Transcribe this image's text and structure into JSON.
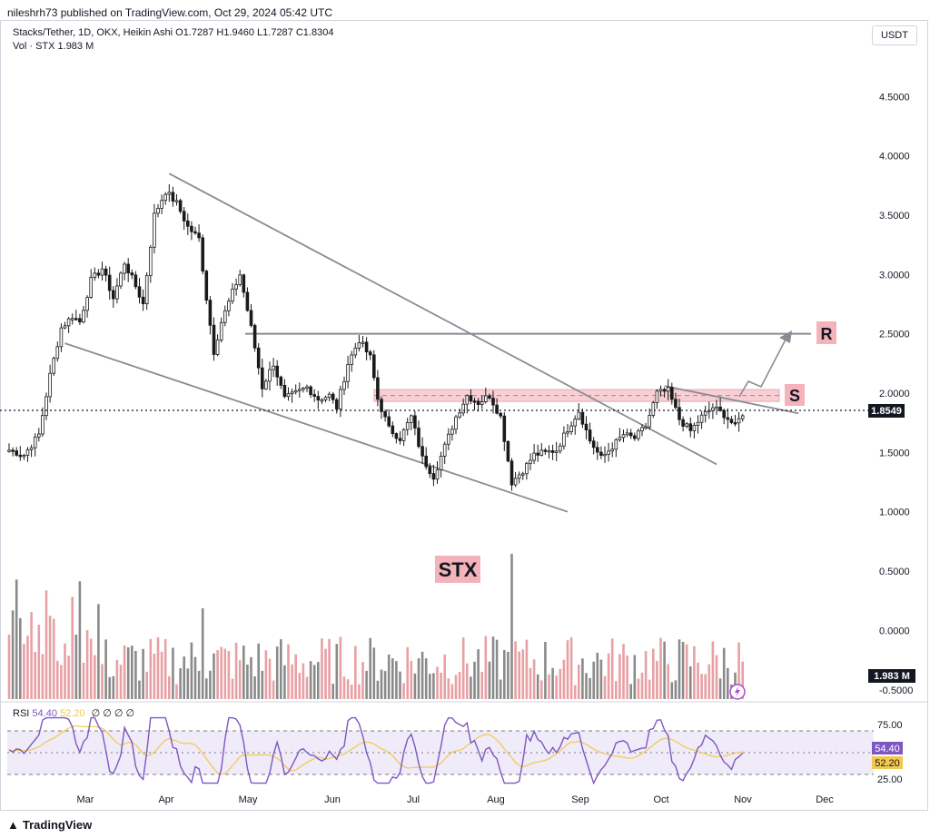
{
  "header": {
    "publisher": "nileshrh73 published on TradingView.com, Oct 29, 2024 05:42 UTC"
  },
  "legend": {
    "symbol_line": "Stacks/Tether, 1D, OKX, Heikin Ashi  O1.7287  H1.9460  L1.7287  C1.8304",
    "volume_line": "Vol · STX  1.983 M"
  },
  "currency_button": "USDT",
  "labels": {
    "r": "R",
    "s": "S",
    "stx": "STX"
  },
  "rsi": {
    "name": "RSI",
    "value": "54.40",
    "ma": "52.20",
    "extra": "∅ ∅ ∅ ∅"
  },
  "footer": {
    "brand": "TradingView"
  },
  "colors": {
    "up": "#1a1a1a",
    "down": "#1a1a1a",
    "vol_up": "#e8a0a4",
    "vol_down": "#8a8a8a",
    "rsi": "#7e57c2",
    "rsi_ma": "#f2c94c",
    "zone": "#f5c0c6",
    "label_bg": "#f4b3ba"
  },
  "chart_data": {
    "type": "candlestick",
    "title": "Stacks/Tether, 1D, OKX, Heikin Ashi",
    "price_ticks": [
      "4.5000",
      "4.0000",
      "3.5000",
      "3.0000",
      "2.5000",
      "2.0000",
      "1.5000",
      "1.0000",
      "0.5000",
      "0.0000",
      "-0.5000"
    ],
    "price_tick_values": [
      4.5,
      4.0,
      3.5,
      3.0,
      2.5,
      2.0,
      1.5,
      1.0,
      0.5,
      0.0,
      -0.5
    ],
    "current_price": "1.8549",
    "current_price_value": 1.8549,
    "volume_last": "1.983 M",
    "months": [
      "Mar",
      "Apr",
      "May",
      "Jun",
      "Jul",
      "Aug",
      "Sep",
      "Oct",
      "Nov",
      "Dec"
    ],
    "rsi_ticks": [
      "75.00",
      "25.00"
    ],
    "rsi_value": "54.40",
    "rsi_ma_value": "52.20",
    "resistance": 2.5,
    "support_zone": [
      1.93,
      2.03
    ],
    "price_anchors": [
      [
        0,
        1.52
      ],
      [
        4,
        1.48
      ],
      [
        8,
        1.65
      ],
      [
        11,
        2.15
      ],
      [
        14,
        2.55
      ],
      [
        17,
        2.65
      ],
      [
        19,
        2.6
      ],
      [
        22,
        2.95
      ],
      [
        25,
        3.05
      ],
      [
        28,
        2.8
      ],
      [
        31,
        3.1
      ],
      [
        34,
        2.9
      ],
      [
        36,
        2.75
      ],
      [
        39,
        3.5
      ],
      [
        42,
        3.7
      ],
      [
        45,
        3.6
      ],
      [
        48,
        3.4
      ],
      [
        51,
        3.3
      ],
      [
        53,
        2.8
      ],
      [
        55,
        2.35
      ],
      [
        57,
        2.6
      ],
      [
        60,
        2.85
      ],
      [
        62,
        3.0
      ],
      [
        65,
        2.55
      ],
      [
        68,
        2.05
      ],
      [
        71,
        2.25
      ],
      [
        74,
        1.95
      ],
      [
        77,
        2.0
      ],
      [
        80,
        2.05
      ],
      [
        83,
        1.95
      ],
      [
        86,
        1.98
      ],
      [
        88,
        1.88
      ],
      [
        91,
        2.25
      ],
      [
        94,
        2.45
      ],
      [
        97,
        2.3
      ],
      [
        99,
        1.95
      ],
      [
        102,
        1.7
      ],
      [
        105,
        1.62
      ],
      [
        108,
        1.8
      ],
      [
        111,
        1.45
      ],
      [
        114,
        1.3
      ],
      [
        117,
        1.55
      ],
      [
        120,
        1.8
      ],
      [
        123,
        1.98
      ],
      [
        126,
        1.92
      ],
      [
        129,
        1.98
      ],
      [
        132,
        1.8
      ],
      [
        135,
        1.25
      ],
      [
        138,
        1.35
      ],
      [
        141,
        1.48
      ],
      [
        144,
        1.5
      ],
      [
        147,
        1.52
      ],
      [
        150,
        1.7
      ],
      [
        153,
        1.85
      ],
      [
        156,
        1.6
      ],
      [
        159,
        1.45
      ],
      [
        162,
        1.55
      ],
      [
        165,
        1.65
      ],
      [
        168,
        1.62
      ],
      [
        171,
        1.72
      ],
      [
        174,
        2.0
      ],
      [
        177,
        2.02
      ],
      [
        180,
        1.78
      ],
      [
        183,
        1.68
      ],
      [
        186,
        1.8
      ],
      [
        189,
        1.88
      ],
      [
        192,
        1.82
      ],
      [
        195,
        1.72
      ],
      [
        197,
        1.83
      ]
    ],
    "trendlines": [
      {
        "name": "upper-channel",
        "from": [
          43,
          3.85
        ],
        "to": [
          190,
          1.4
        ]
      },
      {
        "name": "lower-channel",
        "from": [
          15,
          2.42
        ],
        "to": [
          150,
          1.0
        ]
      },
      {
        "name": "descending-resistance",
        "from": [
          176,
          2.06
        ],
        "to": [
          212,
          1.83
        ]
      }
    ]
  }
}
